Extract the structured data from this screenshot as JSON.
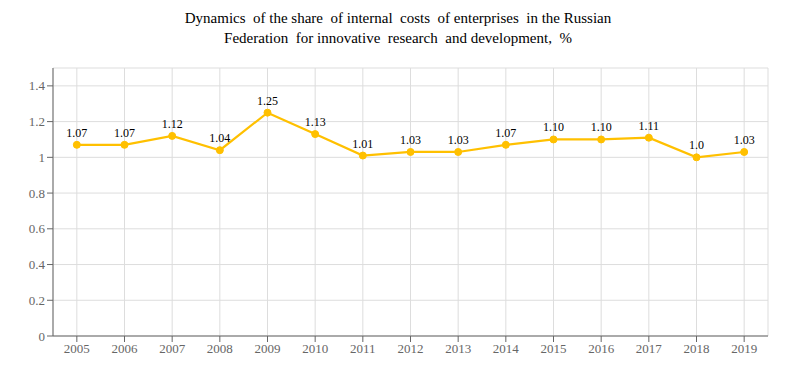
{
  "chart_data": {
    "type": "line",
    "title": "Dynamics  of the share  of internal  costs  of enterprises  in the Russian\nFederation  for innovative  research  and development,  %",
    "x": [
      2005,
      2006,
      2007,
      2008,
      2009,
      2010,
      2011,
      2012,
      2013,
      2014,
      2015,
      2016,
      2017,
      2018,
      2019
    ],
    "values": [
      1.07,
      1.07,
      1.12,
      1.04,
      1.25,
      1.13,
      1.01,
      1.03,
      1.03,
      1.07,
      1.1,
      1.1,
      1.11,
      1.0,
      1.03
    ],
    "value_labels": [
      "1.07",
      "1.07",
      "1.12",
      "1.04",
      "1.25",
      "1.13",
      "1.01",
      "1.03",
      "1.03",
      "1.07",
      "1.10",
      "1.10",
      "1.11",
      "1.0",
      "1.03"
    ],
    "data_labels": true,
    "color": "#FFC000",
    "marker": "circle",
    "xlim": [
      2004.5,
      2019.5
    ],
    "xticks": [
      2005,
      2006,
      2007,
      2008,
      2009,
      2010,
      2011,
      2012,
      2013,
      2014,
      2015,
      2016,
      2017,
      2018,
      2019
    ],
    "ylim": [
      0,
      1.5
    ],
    "yticks": [
      0,
      0.2,
      0.4,
      0.6,
      0.8,
      1,
      1.2,
      1.4
    ],
    "grid": true
  }
}
